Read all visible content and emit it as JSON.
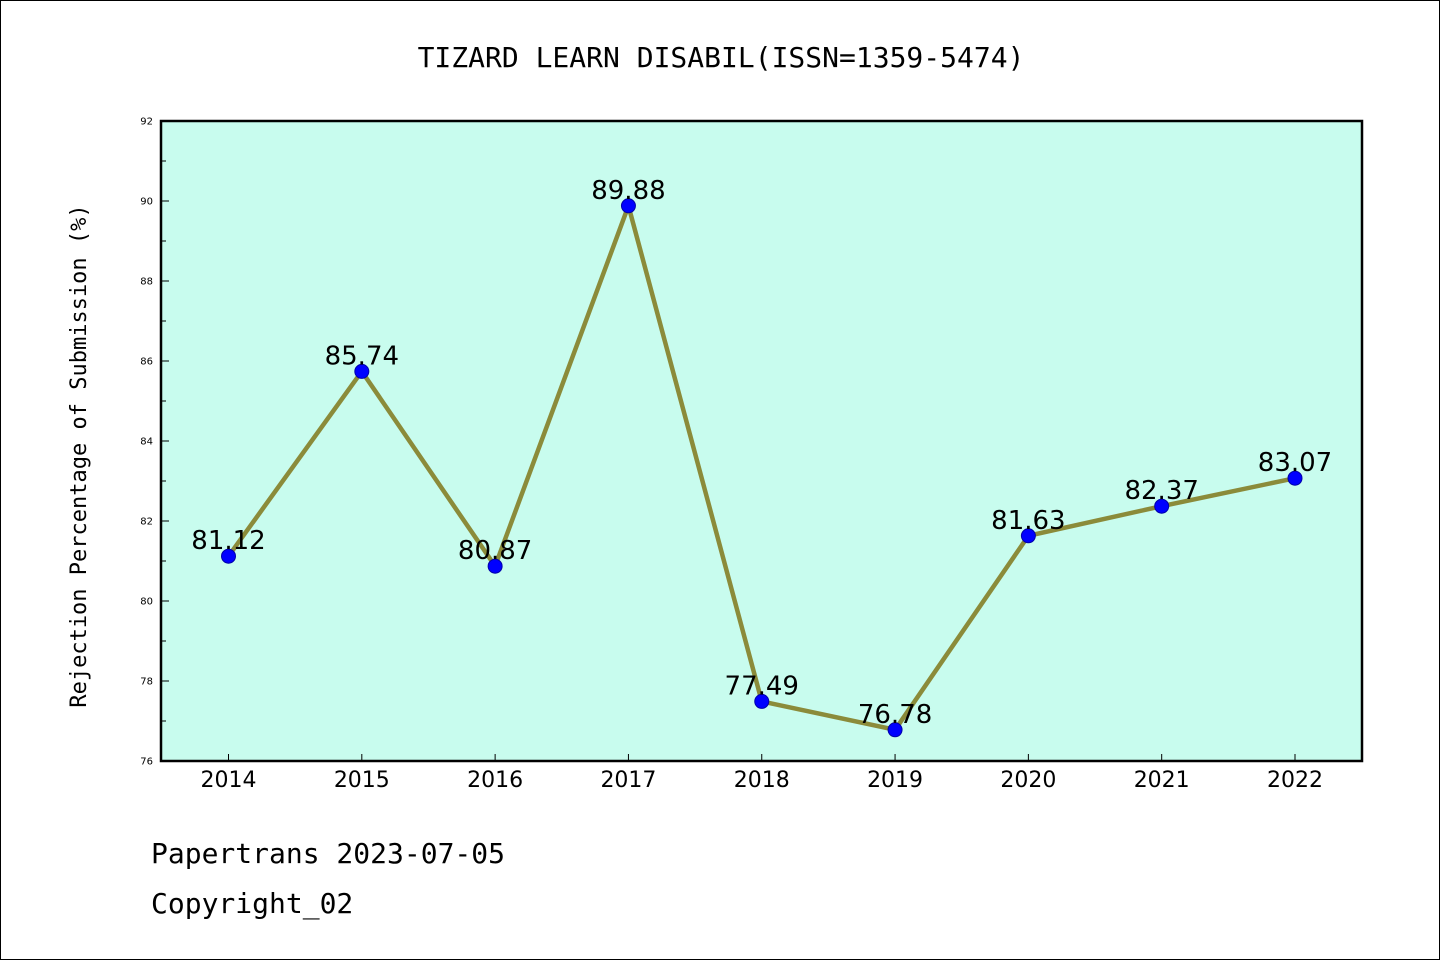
{
  "footer": {
    "line1": "Papertrans 2023-07-05",
    "line2": "Copyright_02"
  },
  "chart_data": {
    "type": "line",
    "title": "TIZARD LEARN DISABIL(ISSN=1359-5474)",
    "xlabel": "",
    "ylabel": "Rejection Percentage of Submission (%)",
    "categories": [
      "2014",
      "2015",
      "2016",
      "2017",
      "2018",
      "2019",
      "2020",
      "2021",
      "2022"
    ],
    "series": [
      {
        "values": [
          81.12,
          85.74,
          80.87,
          89.88,
          77.49,
          76.78,
          81.63,
          82.37,
          83.07
        ],
        "data_labels": [
          "81.12",
          "85.74",
          "80.87",
          "89.88",
          "77.49",
          "76.78",
          "81.63",
          "82.37",
          "83.07"
        ]
      }
    ],
    "ylim": [
      76,
      92
    ],
    "y_ticks": [
      "76",
      "78",
      "80",
      "82",
      "84",
      "86",
      "88",
      "90",
      "92"
    ],
    "grid": false,
    "legend": "none",
    "colors": {
      "plot_background": "#c8fcee",
      "line": "#8b8b3a",
      "marker": "#0000ff",
      "axes": "#000000"
    }
  }
}
